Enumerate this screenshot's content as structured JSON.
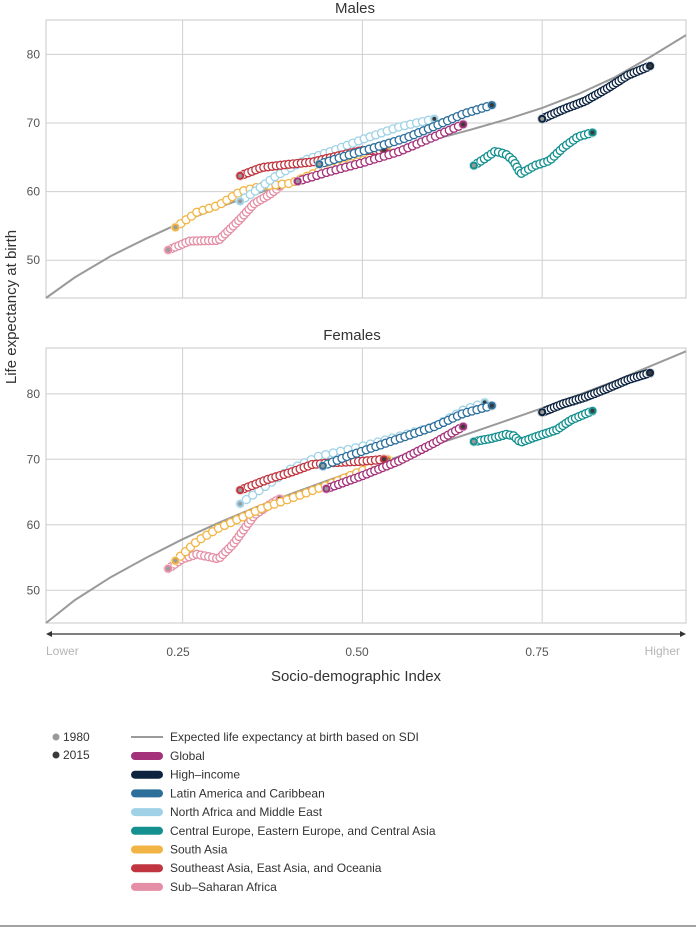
{
  "colors": {
    "expected": "#9a9a9a",
    "Global": "#a3327a",
    "High-income": "#0d2440",
    "Latin America and Caribbean": "#2d6f9b",
    "North Africa and Middle East": "#9fd2e6",
    "Central Europe, Eastern Europe, and Central Asia": "#13908f",
    "South Asia": "#f2b545",
    "Southeast Asia, East Asia, and Oceania": "#c0353f",
    "Sub-Saharan Africa": "#e48fa5",
    "marker_1980": "#9a9a9a",
    "marker_2015": "#3a3a3a",
    "grid": "#cfcfcf",
    "axis_text": "#555555"
  },
  "ylabel": "Life expectancy at birth",
  "xlabel": "Socio-demographic Index",
  "x_end_labels": {
    "low": "Lower",
    "high": "Higher"
  },
  "x_ticks": [
    "0.25",
    "0.50",
    "0.75"
  ],
  "legend": {
    "year_markers": [
      "1980",
      "2015"
    ],
    "expected_label": "Expected life expectancy at birth based on SDI",
    "entries": [
      "Global",
      "High–income",
      "Latin America and Caribbean",
      "North Africa and Middle East",
      "Central Europe, Eastern Europe, and Central Asia",
      "South Asia",
      "Southeast Asia, East Asia, and Oceania",
      "Sub–Saharan Africa"
    ]
  },
  "chart_data": [
    {
      "type": "scatter",
      "title": "Males",
      "xlim": [
        0.06,
        0.95
      ],
      "ylim": [
        44.5,
        85
      ],
      "yticks": [
        50,
        60,
        70,
        80
      ],
      "xticks": [
        0.25,
        0.5,
        0.75
      ],
      "expected_curve": {
        "x": [
          0.06,
          0.1,
          0.15,
          0.2,
          0.25,
          0.3,
          0.35,
          0.4,
          0.45,
          0.5,
          0.55,
          0.6,
          0.65,
          0.7,
          0.75,
          0.8,
          0.85,
          0.9,
          0.95
        ],
        "y": [
          44.5,
          47.5,
          50.6,
          53.2,
          55.6,
          57.7,
          59.6,
          61.4,
          63.0,
          64.6,
          66.1,
          67.6,
          69.0,
          70.5,
          72.2,
          74.2,
          76.6,
          79.6,
          82.8
        ]
      },
      "series": [
        {
          "name": "Sub-Saharan Africa",
          "anchors": [
            [
              0.23,
              51.5
            ],
            [
              0.26,
              52.8
            ],
            [
              0.3,
              52.9
            ],
            [
              0.33,
              56.0
            ],
            [
              0.35,
              58.3
            ],
            [
              0.37,
              59.5
            ],
            [
              0.385,
              60.7
            ]
          ],
          "start": [
            0.23,
            51.5
          ],
          "end": [
            0.385,
            60.7
          ]
        },
        {
          "name": "South Asia",
          "anchors": [
            [
              0.24,
              54.8
            ],
            [
              0.27,
              57.0
            ],
            [
              0.3,
              58.0
            ],
            [
              0.33,
              60.0
            ],
            [
              0.36,
              60.8
            ],
            [
              0.4,
              61.2
            ],
            [
              0.44,
              63.0
            ],
            [
              0.5,
              64.5
            ],
            [
              0.535,
              65.9
            ]
          ],
          "start": [
            0.24,
            54.8
          ],
          "end": [
            0.535,
            65.9
          ]
        },
        {
          "name": "North Africa and Middle East",
          "anchors": [
            [
              0.33,
              58.6
            ],
            [
              0.35,
              60.0
            ],
            [
              0.38,
              62.3
            ],
            [
              0.42,
              64.6
            ],
            [
              0.46,
              66.0
            ],
            [
              0.5,
              67.6
            ],
            [
              0.55,
              69.4
            ],
            [
              0.6,
              70.6
            ]
          ],
          "start": [
            0.33,
            58.6
          ],
          "end": [
            0.6,
            70.6
          ]
        },
        {
          "name": "Southeast Asia, East Asia, and Oceania",
          "anchors": [
            [
              0.33,
              62.3
            ],
            [
              0.36,
              63.5
            ],
            [
              0.4,
              64.0
            ],
            [
              0.43,
              64.3
            ],
            [
              0.47,
              65.3
            ],
            [
              0.5,
              66.0
            ],
            [
              0.53,
              66.0
            ]
          ],
          "start": [
            0.33,
            62.3
          ],
          "end": [
            0.53,
            66.0
          ]
        },
        {
          "name": "Global",
          "anchors": [
            [
              0.41,
              61.5
            ],
            [
              0.45,
              62.8
            ],
            [
              0.5,
              64.2
            ],
            [
              0.55,
              65.8
            ],
            [
              0.6,
              68.0
            ],
            [
              0.64,
              69.8
            ]
          ],
          "start": [
            0.41,
            61.5
          ],
          "end": [
            0.64,
            69.8
          ]
        },
        {
          "name": "Latin America and Caribbean",
          "anchors": [
            [
              0.44,
              64.0
            ],
            [
              0.48,
              65.3
            ],
            [
              0.52,
              66.5
            ],
            [
              0.56,
              67.8
            ],
            [
              0.6,
              69.5
            ],
            [
              0.64,
              71.3
            ],
            [
              0.68,
              72.6
            ]
          ],
          "start": [
            0.44,
            64.0
          ],
          "end": [
            0.68,
            72.6
          ]
        },
        {
          "name": "Central Europe, Eastern Europe, and Central Asia",
          "anchors": [
            [
              0.655,
              63.8
            ],
            [
              0.67,
              64.8
            ],
            [
              0.685,
              65.9
            ],
            [
              0.7,
              65.4
            ],
            [
              0.71,
              64.5
            ],
            [
              0.72,
              62.6
            ],
            [
              0.74,
              63.8
            ],
            [
              0.76,
              64.5
            ],
            [
              0.78,
              66.5
            ],
            [
              0.8,
              68.0
            ],
            [
              0.82,
              68.6
            ]
          ],
          "start": [
            0.655,
            63.8
          ],
          "end": [
            0.82,
            68.6
          ]
        },
        {
          "name": "High-income",
          "anchors": [
            [
              0.75,
              70.6
            ],
            [
              0.78,
              72.0
            ],
            [
              0.81,
              73.2
            ],
            [
              0.84,
              75.0
            ],
            [
              0.87,
              77.0
            ],
            [
              0.9,
              78.3
            ]
          ],
          "start": [
            0.75,
            70.6
          ],
          "end": [
            0.9,
            78.3
          ]
        }
      ]
    },
    {
      "type": "scatter",
      "title": "Females",
      "xlim": [
        0.06,
        0.95
      ],
      "ylim": [
        45,
        87
      ],
      "yticks": [
        50,
        60,
        70,
        80
      ],
      "xticks": [
        0.25,
        0.5,
        0.75
      ],
      "expected_curve": {
        "x": [
          0.06,
          0.1,
          0.15,
          0.2,
          0.25,
          0.3,
          0.35,
          0.4,
          0.45,
          0.5,
          0.55,
          0.6,
          0.65,
          0.7,
          0.75,
          0.8,
          0.85,
          0.9,
          0.95
        ],
        "y": [
          45.0,
          48.5,
          52.0,
          55.0,
          57.8,
          60.3,
          62.6,
          64.7,
          66.7,
          68.6,
          70.4,
          72.2,
          74.0,
          75.9,
          77.8,
          79.8,
          81.9,
          84.2,
          86.5
        ]
      },
      "series": [
        {
          "name": "Sub-Saharan Africa",
          "anchors": [
            [
              0.23,
              53.3
            ],
            [
              0.25,
              54.8
            ],
            [
              0.27,
              55.5
            ],
            [
              0.3,
              54.8
            ],
            [
              0.32,
              57.0
            ],
            [
              0.35,
              61.5
            ],
            [
              0.37,
              63.0
            ],
            [
              0.385,
              64.0
            ]
          ],
          "start": [
            0.23,
            53.3
          ],
          "end": [
            0.385,
            64.0
          ]
        },
        {
          "name": "South Asia",
          "anchors": [
            [
              0.24,
              54.5
            ],
            [
              0.27,
              57.5
            ],
            [
              0.3,
              59.5
            ],
            [
              0.33,
              61.0
            ],
            [
              0.36,
              62.5
            ],
            [
              0.4,
              64.0
            ],
            [
              0.45,
              66.0
            ],
            [
              0.5,
              68.3
            ],
            [
              0.535,
              70.0
            ]
          ],
          "start": [
            0.24,
            54.5
          ],
          "end": [
            0.535,
            70.0
          ]
        },
        {
          "name": "North Africa and Middle East",
          "anchors": [
            [
              0.33,
              63.2
            ],
            [
              0.36,
              65.5
            ],
            [
              0.4,
              68.5
            ],
            [
              0.44,
              70.5
            ],
            [
              0.5,
              72.0
            ],
            [
              0.55,
              73.5
            ],
            [
              0.6,
              75.0
            ],
            [
              0.64,
              77.5
            ],
            [
              0.67,
              78.7
            ]
          ],
          "start": [
            0.33,
            63.2
          ],
          "end": [
            0.67,
            78.7
          ]
        },
        {
          "name": "Southeast Asia, East Asia, and Oceania",
          "anchors": [
            [
              0.33,
              65.3
            ],
            [
              0.37,
              67.0
            ],
            [
              0.4,
              68.0
            ],
            [
              0.43,
              69.2
            ],
            [
              0.46,
              69.5
            ],
            [
              0.5,
              69.7
            ],
            [
              0.53,
              70.0
            ]
          ],
          "start": [
            0.33,
            65.3
          ],
          "end": [
            0.53,
            70.0
          ]
        },
        {
          "name": "Global",
          "anchors": [
            [
              0.45,
              65.5
            ],
            [
              0.5,
              67.5
            ],
            [
              0.55,
              69.7
            ],
            [
              0.6,
              72.5
            ],
            [
              0.64,
              75.0
            ]
          ],
          "start": [
            0.45,
            65.5
          ],
          "end": [
            0.64,
            75.0
          ]
        },
        {
          "name": "Latin America and Caribbean",
          "anchors": [
            [
              0.445,
              69.0
            ],
            [
              0.48,
              70.5
            ],
            [
              0.52,
              72.0
            ],
            [
              0.56,
              73.5
            ],
            [
              0.6,
              75.0
            ],
            [
              0.64,
              77.0
            ],
            [
              0.68,
              78.2
            ]
          ],
          "start": [
            0.445,
            69.0
          ],
          "end": [
            0.68,
            78.2
          ]
        },
        {
          "name": "Central Europe, Eastern Europe, and Central Asia",
          "anchors": [
            [
              0.655,
              72.7
            ],
            [
              0.68,
              73.2
            ],
            [
              0.7,
              73.8
            ],
            [
              0.71,
              73.6
            ],
            [
              0.72,
              72.6
            ],
            [
              0.74,
              73.4
            ],
            [
              0.77,
              74.5
            ],
            [
              0.79,
              76.0
            ],
            [
              0.82,
              77.4
            ]
          ],
          "start": [
            0.655,
            72.7
          ],
          "end": [
            0.82,
            77.4
          ]
        },
        {
          "name": "High-income",
          "anchors": [
            [
              0.75,
              77.2
            ],
            [
              0.78,
              78.5
            ],
            [
              0.81,
              79.5
            ],
            [
              0.84,
              80.8
            ],
            [
              0.87,
              82.2
            ],
            [
              0.9,
              83.2
            ]
          ],
          "start": [
            0.75,
            77.2
          ],
          "end": [
            0.9,
            83.2
          ]
        }
      ]
    }
  ]
}
